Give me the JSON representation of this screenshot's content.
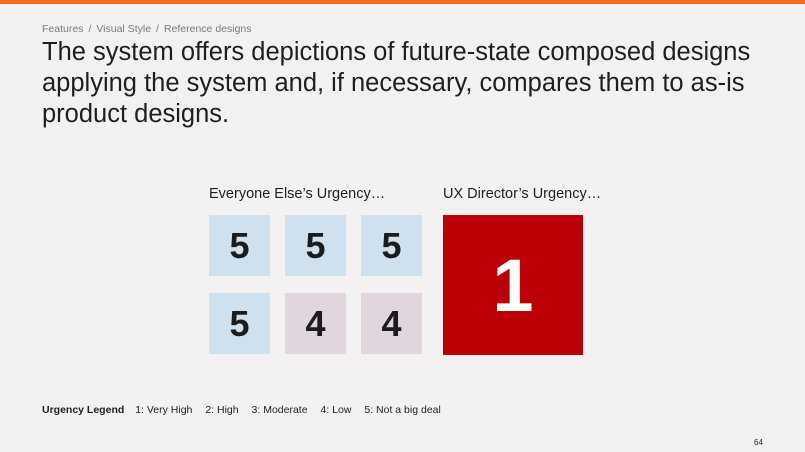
{
  "breadcrumb": {
    "items": [
      "Features",
      "Visual Style",
      "Reference designs"
    ],
    "separator": "/"
  },
  "headline": "The system offers depictions of future-state composed designs applying the system and, if necessary, compares them to as-is product designs.",
  "captions": {
    "everyone": "Everyone Else’s Urgency…",
    "director": "UX Director’s Urgency…"
  },
  "grid": {
    "tiles": [
      {
        "value": "5",
        "color": "#cfe1ef"
      },
      {
        "value": "5",
        "color": "#cfe1ef"
      },
      {
        "value": "5",
        "color": "#cfe1ef"
      },
      {
        "value": "5",
        "color": "#cfe1ef"
      },
      {
        "value": "4",
        "color": "#e1d6dd"
      },
      {
        "value": "4",
        "color": "#e1d6dd"
      }
    ]
  },
  "director_tile": {
    "value": "1",
    "color": "#bb0008"
  },
  "legend": {
    "title": "Urgency Legend",
    "items": [
      "1: Very High",
      "2: High",
      "3: Moderate",
      "4: Low",
      "5: Not a big deal"
    ]
  },
  "page_number": "64",
  "colors": {
    "accent_bar": "#f26a1b",
    "background": "#f3f1f2"
  }
}
